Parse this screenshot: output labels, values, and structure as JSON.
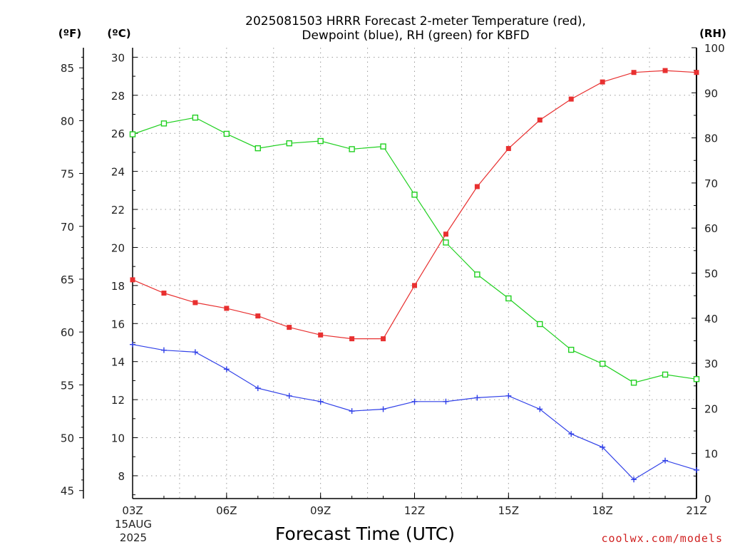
{
  "chart_data": {
    "type": "line",
    "title_line1": "2025081503 HRRR Forecast 2-meter Temperature (red),",
    "title_line2": "Dewpoint (blue), RH (green) for KBFD",
    "xlabel": "Forecast Time (UTC)",
    "credit": "coolwx.com/models",
    "units": {
      "f": "(ºF)",
      "c": "(ºC)",
      "rh": "(RH)"
    },
    "date_label": [
      "15AUG",
      "2025"
    ],
    "x_hours": [
      3,
      4,
      5,
      6,
      7,
      8,
      9,
      10,
      11,
      12,
      13,
      14,
      15,
      16,
      17,
      18,
      19,
      20,
      21
    ],
    "x_ticks": [
      {
        "hour": 3,
        "label": "03Z"
      },
      {
        "hour": 6,
        "label": "06Z"
      },
      {
        "hour": 9,
        "label": "09Z"
      },
      {
        "hour": 12,
        "label": "12Z"
      },
      {
        "hour": 15,
        "label": "15Z"
      },
      {
        "hour": 18,
        "label": "18Z"
      },
      {
        "hour": 21,
        "label": "21Z"
      }
    ],
    "celsius_axis": {
      "range": [
        6.8,
        30.5
      ],
      "ticks": [
        8,
        10,
        12,
        14,
        16,
        18,
        20,
        22,
        24,
        26,
        28,
        30
      ]
    },
    "fahrenheit_axis": {
      "ticks": [
        45,
        50,
        55,
        60,
        65,
        70,
        75,
        80,
        85
      ]
    },
    "rh_axis": {
      "range": [
        0,
        100
      ],
      "ticks": [
        0,
        10,
        20,
        30,
        40,
        50,
        60,
        70,
        80,
        90,
        100
      ]
    },
    "grid": true,
    "series": [
      {
        "name": "Temperature",
        "axis": "c",
        "color": "#e83030",
        "marker": "filled-square",
        "values": [
          18.3,
          17.6,
          17.1,
          16.8,
          16.4,
          15.8,
          15.4,
          15.2,
          15.2,
          18.0,
          20.7,
          23.2,
          25.2,
          26.7,
          27.8,
          28.7,
          29.2,
          29.3,
          29.2
        ]
      },
      {
        "name": "Dewpoint",
        "axis": "c",
        "color": "#3040e8",
        "marker": "plus",
        "values": [
          14.9,
          14.6,
          14.5,
          13.6,
          12.6,
          12.2,
          11.9,
          11.4,
          11.5,
          11.9,
          11.9,
          12.1,
          12.2,
          11.5,
          10.2,
          9.5,
          7.8,
          8.8,
          8.3
        ]
      },
      {
        "name": "RH",
        "axis": "rh",
        "color": "#20d020",
        "marker": "open-square",
        "values": [
          80.8,
          83.2,
          84.5,
          80.9,
          77.7,
          78.8,
          79.3,
          77.5,
          78.1,
          67.4,
          56.8,
          49.7,
          44.4,
          38.7,
          33.0,
          29.9,
          25.7,
          27.5,
          26.5
        ]
      }
    ]
  }
}
